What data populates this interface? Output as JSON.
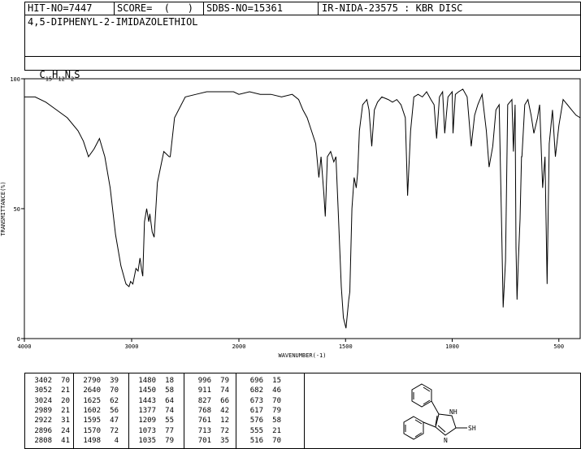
{
  "header": {
    "hit_no": "HIT-NO=7447",
    "score": "SCORE=  (   )",
    "sdbs_no": "SDBS-NO=15361",
    "ir_nida": "IR-NIDA-23575 : KBR DISC",
    "compound_name": "4,5-DIPHENYL-2-IMIDAZOLETHIOL",
    "formula_parts": [
      "C",
      "15",
      "H",
      "12",
      "N",
      "2",
      "S"
    ]
  },
  "chart_data": {
    "type": "line",
    "xlabel": "WAVENUMBER(-1)",
    "ylabel": "TRANSMITTANCE(%)",
    "xlim": [
      4000,
      400
    ],
    "ylim": [
      0,
      100
    ],
    "x_ticks": [
      "4000",
      "3000",
      "2000",
      "1500",
      "1000",
      "500"
    ],
    "y_ticks": [
      "100",
      "50",
      "0"
    ],
    "series": [
      {
        "x": [
          4000,
          3900,
          3800,
          3700,
          3600,
          3500,
          3450,
          3402,
          3350,
          3300,
          3250,
          3200,
          3150,
          3100,
          3060,
          3052,
          3024,
          3010,
          2989,
          2960,
          2940,
          2922,
          2905,
          2896,
          2880,
          2860,
          2840,
          2830,
          2808,
          2790,
          2760,
          2700,
          2650,
          2640,
          2600,
          2500,
          2400,
          2300,
          2200,
          2100,
          2050,
          2000,
          1950,
          1900,
          1850,
          1800,
          1750,
          1720,
          1700,
          1680,
          1660,
          1640,
          1625,
          1615,
          1602,
          1595,
          1585,
          1570,
          1555,
          1545,
          1535,
          1520,
          1510,
          1498,
          1485,
          1480,
          1470,
          1460,
          1450,
          1443,
          1435,
          1420,
          1400,
          1390,
          1377,
          1365,
          1350,
          1330,
          1300,
          1280,
          1260,
          1240,
          1220,
          1209,
          1195,
          1180,
          1160,
          1140,
          1120,
          1100,
          1085,
          1073,
          1060,
          1045,
          1035,
          1020,
          1000,
          996,
          985,
          970,
          950,
          930,
          911,
          895,
          880,
          860,
          840,
          827,
          810,
          795,
          780,
          768,
          761,
          750,
          740,
          720,
          713,
          705,
          701,
          696,
          690,
          682,
          675,
          673,
          660,
          645,
          630,
          617,
          600,
          590,
          576,
          565,
          555,
          545,
          530,
          516,
          500,
          480,
          460,
          440,
          420,
          400
        ],
        "y": [
          93,
          93,
          91,
          88,
          85,
          80,
          76,
          70,
          73,
          77,
          70,
          58,
          40,
          28,
          22,
          21,
          20,
          22,
          21,
          27,
          26,
          31,
          26,
          24,
          45,
          50,
          45,
          48,
          41,
          39,
          60,
          72,
          70,
          70,
          85,
          93,
          94,
          95,
          95,
          95,
          95,
          94,
          95,
          94,
          94,
          93,
          94,
          92,
          88,
          85,
          80,
          75,
          62,
          70,
          56,
          47,
          70,
          72,
          68,
          70,
          50,
          20,
          8,
          4,
          15,
          18,
          50,
          62,
          58,
          64,
          80,
          90,
          92,
          88,
          74,
          88,
          91,
          93,
          92,
          91,
          92,
          90,
          85,
          55,
          80,
          93,
          94,
          93,
          95,
          92,
          90,
          77,
          93,
          95,
          79,
          93,
          95,
          79,
          94,
          95,
          96,
          93,
          74,
          86,
          90,
          94,
          80,
          66,
          74,
          88,
          90,
          42,
          12,
          30,
          90,
          92,
          72,
          90,
          35,
          15,
          30,
          46,
          70,
          70,
          90,
          92,
          86,
          79,
          85,
          90,
          58,
          70,
          21,
          75,
          88,
          70,
          82,
          92,
          90,
          88,
          86,
          85
        ]
      }
    ],
    "grid": false,
    "legend": "none"
  },
  "peak_table": {
    "columns": [
      {
        "wn": [
          "3402",
          "3052",
          "3024",
          "2989",
          "2922",
          "2896",
          "2808"
        ],
        "t": [
          "70",
          "21",
          "20",
          "21",
          "31",
          "24",
          "41"
        ]
      },
      {
        "wn": [
          "2790",
          "2640",
          "1625",
          "1602",
          "1595",
          "1570",
          "1498"
        ],
        "t": [
          "39",
          "70",
          "62",
          "56",
          "47",
          "72",
          "4"
        ]
      },
      {
        "wn": [
          "1480",
          "1450",
          "1443",
          "1377",
          "1209",
          "1073",
          "1035"
        ],
        "t": [
          "18",
          "58",
          "64",
          "74",
          "55",
          "77",
          "79"
        ]
      },
      {
        "wn": [
          "996",
          "911",
          "827",
          "768",
          "761",
          "713",
          "701"
        ],
        "t": [
          "79",
          "74",
          "66",
          "42",
          "12",
          "72",
          "35"
        ]
      },
      {
        "wn": [
          "696",
          "682",
          "673",
          "617",
          "576",
          "555",
          "516"
        ],
        "t": [
          "15",
          "46",
          "70",
          "79",
          "58",
          "21",
          "70"
        ]
      }
    ]
  },
  "structure": {
    "nh_label": "NH",
    "n_label": "N",
    "sh_label": "SH"
  }
}
